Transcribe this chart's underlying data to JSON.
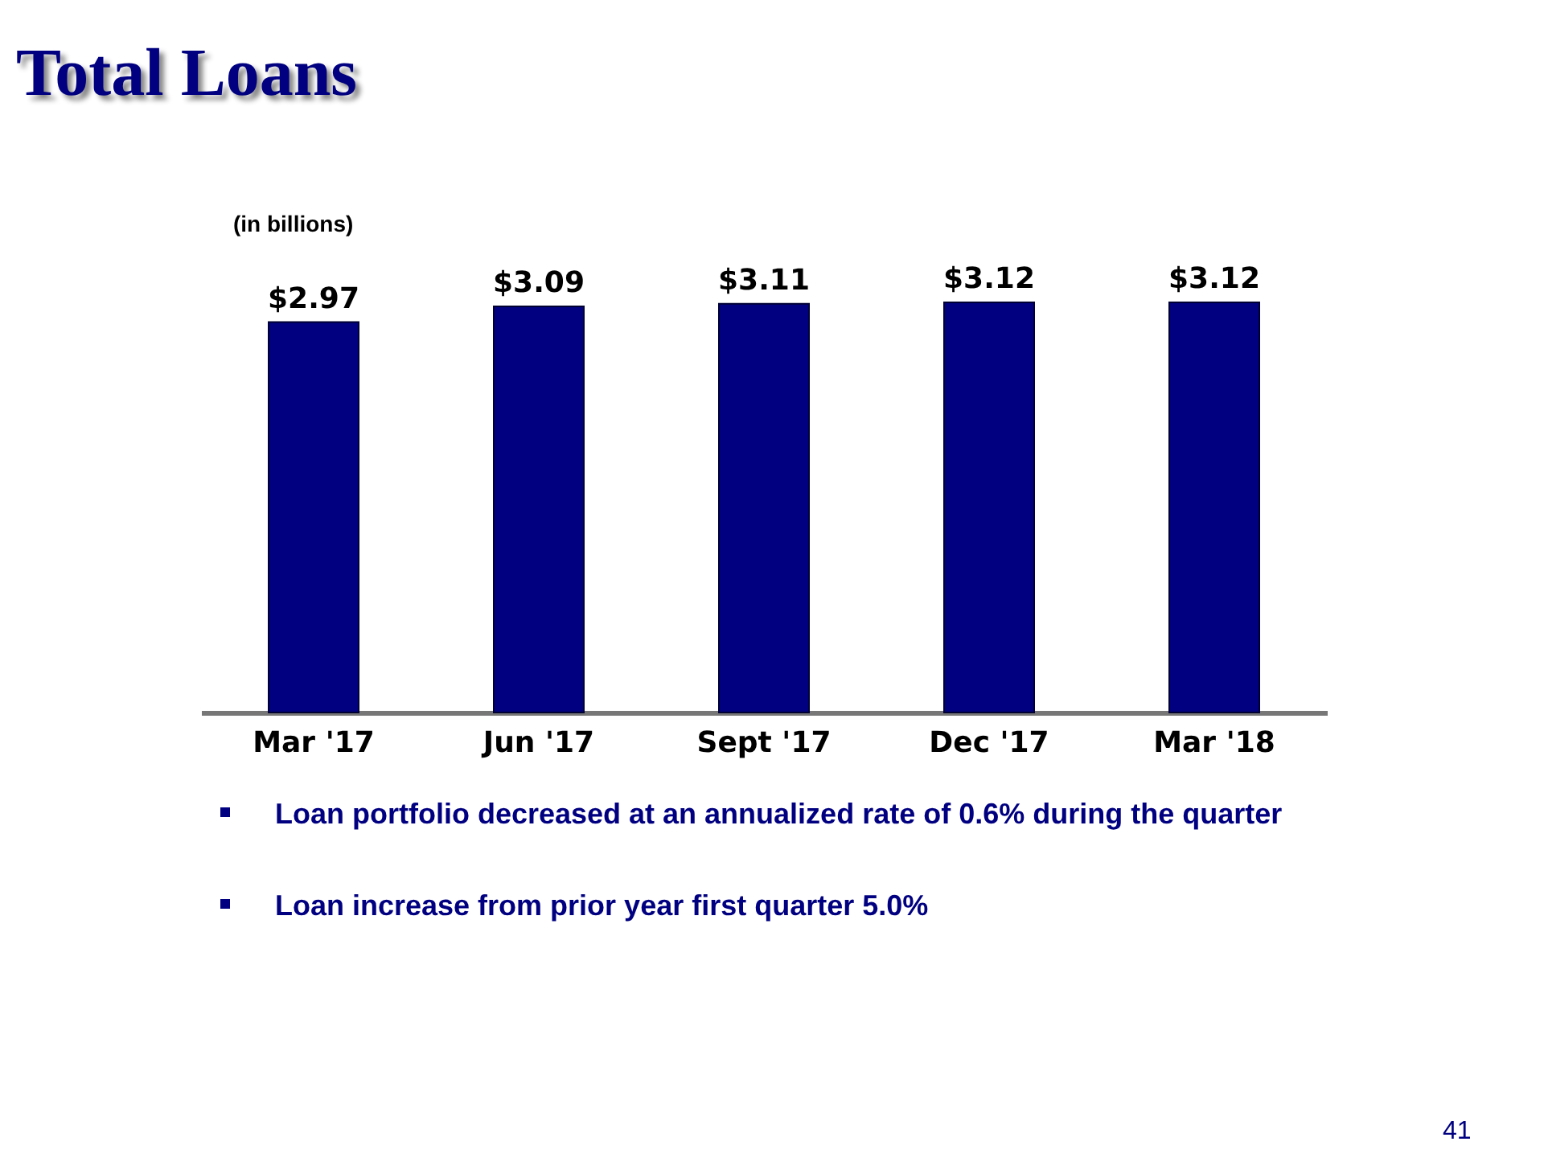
{
  "chart_data": {
    "type": "bar",
    "title": "Total Loans",
    "categories": [
      "Mar '17",
      "Jun '17",
      "Sept '17",
      "Dec '17",
      "Mar '18"
    ],
    "series": [
      {
        "color": "#000080",
        "values": [
          2.97,
          3.09,
          3.11,
          3.12,
          3.12
        ],
        "value_labels": [
          "$2.97",
          "$3.09",
          "$3.11",
          "$3.12",
          "$3.12"
        ]
      }
    ],
    "annotations": [
      "(in billions)",
      "Loan portfolio decreased at an annualized rate of 0.6% during the quarter",
      "Loan increase from prior year first quarter 5.0%",
      "41"
    ]
  }
}
